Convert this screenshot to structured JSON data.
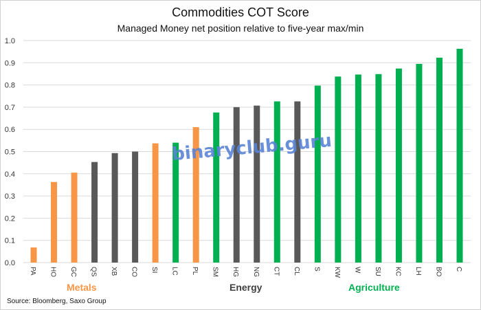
{
  "chart_data": {
    "type": "bar",
    "title": "Commodities COT Score",
    "subtitle": "Managed Money net position relative to five-year max/min",
    "xlabel": "",
    "ylabel": "",
    "ylim": [
      0,
      1.0
    ],
    "yticks": [
      "0.0",
      "0.1",
      "0.2",
      "0.3",
      "0.4",
      "0.5",
      "0.6",
      "0.7",
      "0.8",
      "0.9",
      "1.0"
    ],
    "grid": true,
    "categories": [
      "PA",
      "HO",
      "GC",
      "QS",
      "XB",
      "CO",
      "SI",
      "LC",
      "PL",
      "SM",
      "HG",
      "NG",
      "CT",
      "CL",
      "S",
      "KW",
      "W",
      "SU",
      "KC",
      "LH",
      "BO",
      "C"
    ],
    "values": [
      0.068,
      0.363,
      0.405,
      0.453,
      0.493,
      0.5,
      0.537,
      0.54,
      0.61,
      0.676,
      0.7,
      0.707,
      0.726,
      0.726,
      0.797,
      0.838,
      0.847,
      0.849,
      0.874,
      0.895,
      0.923,
      0.963
    ],
    "groups": [
      "metals",
      "metals",
      "metals",
      "energy",
      "energy",
      "energy",
      "metals",
      "agriculture",
      "metals",
      "agriculture",
      "energy",
      "energy",
      "agriculture",
      "energy",
      "agriculture",
      "agriculture",
      "agriculture",
      "agriculture",
      "agriculture",
      "agriculture",
      "agriculture",
      "agriculture"
    ],
    "group_labels": {
      "metals": "Metals",
      "energy": "Energy",
      "agriculture": "Agriculture"
    },
    "colors": {
      "metals": "#f79646",
      "energy": "#595959",
      "agriculture": "#00b050"
    }
  },
  "source": "Source: Bloomberg, Saxo Group",
  "watermark": "binaryclub.guru"
}
